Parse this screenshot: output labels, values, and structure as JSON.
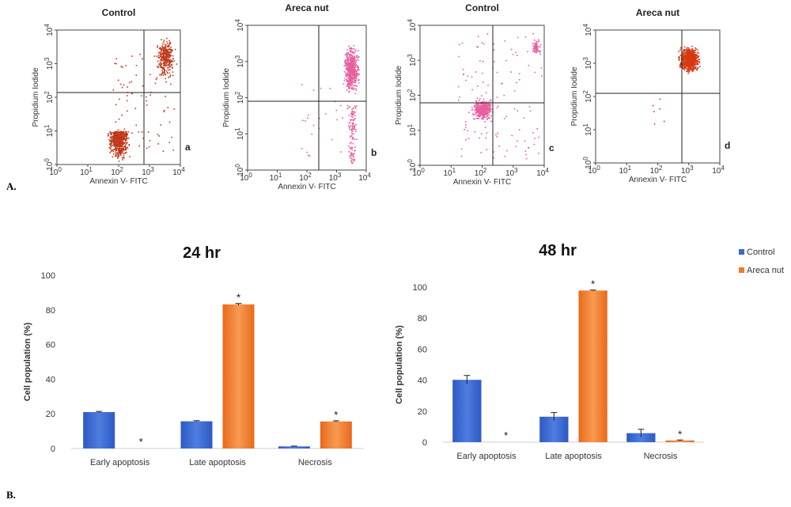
{
  "figure": {
    "section_a_label": "A.",
    "section_b_label": "B."
  },
  "flow_panels": [
    {
      "title": "Control",
      "letter": "a",
      "xlabel": "Annexin V- FITC",
      "ylabel": "Propidium Iodide",
      "dot_color": "#c0391b"
    },
    {
      "title": "Areca nut",
      "letter": "b",
      "xlabel": "Annexin V- FITC",
      "ylabel": "Propidium Iodide",
      "dot_color": "#e6609f"
    },
    {
      "title": "Control",
      "letter": "c",
      "xlabel": "Annexin V- FITC",
      "ylabel": "Propidium Iodide",
      "dot_color": "#e6609f"
    },
    {
      "title": "Areca nut",
      "letter": "d",
      "xlabel": "Annexin V- FITC",
      "ylabel": "Propidium Iodide",
      "dot_color": "#d63a12"
    }
  ],
  "flow_axis": {
    "tick_bases": [
      "10",
      "10",
      "10",
      "10",
      "10"
    ],
    "tick_exponents": [
      "0",
      "1",
      "2",
      "3",
      "4"
    ]
  },
  "legend": {
    "control": "Control",
    "areca": "Areca nut",
    "control_color": "#3a68cf",
    "areca_color": "#f07a24"
  },
  "significance_marker": "*",
  "chart_data": [
    {
      "type": "bar",
      "title": "24 hr",
      "xlabel": "",
      "ylabel": "Cell population (%)",
      "ylim": [
        0,
        100
      ],
      "yticks": [
        0,
        20,
        40,
        60,
        80,
        100
      ],
      "categories": [
        "Early apoptosis",
        "Late apoptosis",
        "Necrosis"
      ],
      "series": [
        {
          "name": "Control",
          "values": [
            21,
            15.7,
            1.2
          ],
          "errors": [
            0.4,
            0.4,
            0.2
          ]
        },
        {
          "name": "Areca nut",
          "values": [
            0,
            83.2,
            15.6
          ],
          "errors": [
            0,
            0.5,
            0.4
          ]
        }
      ],
      "significant": [
        "Early apoptosis",
        "Late apoptosis",
        "Necrosis"
      ]
    },
    {
      "type": "bar",
      "title": "48 hr",
      "xlabel": "",
      "ylabel": "Cell population (%)",
      "ylim": [
        0,
        100
      ],
      "yticks": [
        0,
        20,
        40,
        60,
        80,
        100
      ],
      "categories": [
        "Early apoptosis",
        "Late apoptosis",
        "Necrosis"
      ],
      "series": [
        {
          "name": "Control",
          "values": [
            40.2,
            16.4,
            5.8
          ],
          "errors": [
            2.8,
            2.7,
            2.5
          ]
        },
        {
          "name": "Areca nut",
          "values": [
            0,
            97.8,
            1.1
          ],
          "errors": [
            0,
            0.3,
            0.3
          ]
        }
      ],
      "significant": [
        "Early apoptosis",
        "Late apoptosis",
        "Necrosis"
      ]
    }
  ]
}
